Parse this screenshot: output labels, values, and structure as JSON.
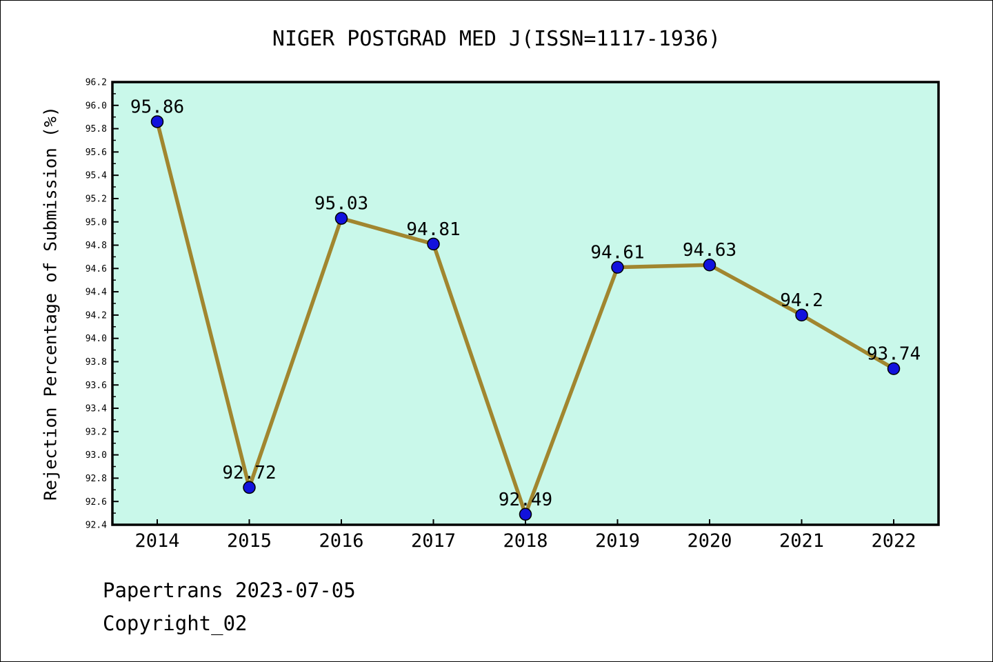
{
  "title": "NIGER POSTGRAD MED J(ISSN=1117-1936)",
  "footer": {
    "line1": "Papertrans 2023-07-05",
    "line2": "Copyright_02"
  },
  "chart_data": {
    "type": "line",
    "title": "NIGER POSTGRAD MED J(ISSN=1117-1936)",
    "xlabel": "",
    "ylabel": "Rejection Percentage of Submission (%)",
    "categories": [
      "2014",
      "2015",
      "2016",
      "2017",
      "2018",
      "2019",
      "2020",
      "2021",
      "2022"
    ],
    "series": [
      {
        "name": "Rejection Percentage of Submission (%)",
        "values": [
          95.86,
          92.72,
          95.03,
          94.81,
          92.49,
          94.61,
          94.63,
          94.2,
          93.74
        ]
      }
    ],
    "value_labels": [
      "95.86",
      "92.72",
      "95.03",
      "94.81",
      "92.49",
      "94.61",
      "94.63",
      "94.2",
      "93.74"
    ],
    "ylim": [
      92.4,
      96.2
    ],
    "ytick_step": 0.2,
    "yminor_step": 0.1,
    "grid": false,
    "legend": "none",
    "colors": {
      "plot_bg": "#c9f8ea",
      "line": "#a1862f",
      "marker": "#1212dd",
      "marker_edge": "#000000",
      "axis": "#000000",
      "text": "#000000"
    }
  }
}
